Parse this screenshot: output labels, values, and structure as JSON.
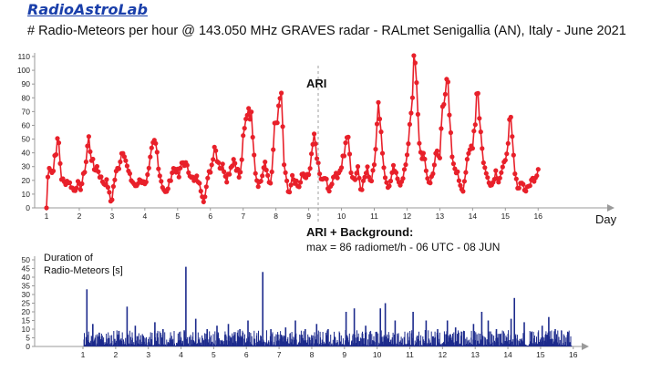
{
  "header": {
    "logo_text": "RadioAstroLab",
    "title": "# Radio-Meteors per hour  @ 143.050 MHz GRAVES radar - RALmet Senigallia (AN), Italy - June 2021"
  },
  "annotations": {
    "peak_label": "ARI",
    "info_heading": "ARI + Background:",
    "info_detail": "max = 86 radiomet/h - 06 UTC - 08 JUN",
    "lower_label_line1": "Duration of",
    "lower_label_line2": "Radio-Meteors [s]",
    "xaxis_label": "Day"
  },
  "colors": {
    "rate_series": "#e8202a",
    "duration_series": "#1c2a8c",
    "axis": "#9a9a9a"
  },
  "chart_data": [
    {
      "type": "line",
      "title": "# Radio-Meteors per hour  @ 143.050 MHz GRAVES radar - RALmet Senigallia (AN), Italy - June 2021",
      "xlabel": "Day",
      "ylabel": "",
      "xlim": [
        1,
        16
      ],
      "ylim": [
        0,
        110
      ],
      "x_ticks": [
        1,
        2,
        3,
        4,
        5,
        6,
        7,
        8,
        9,
        10,
        11,
        12,
        13,
        14,
        15,
        16
      ],
      "y_ticks": [
        0,
        10,
        20,
        30,
        40,
        50,
        60,
        70,
        80,
        90,
        100,
        110
      ],
      "grid": false,
      "legend": "none",
      "marker": "dot",
      "control_points": [
        [
          1.0,
          0
        ],
        [
          1.05,
          27
        ],
        [
          1.12,
          30
        ],
        [
          1.2,
          25
        ],
        [
          1.25,
          38
        ],
        [
          1.32,
          46
        ],
        [
          1.37,
          48
        ],
        [
          1.45,
          22
        ],
        [
          1.55,
          18
        ],
        [
          1.65,
          20
        ],
        [
          1.75,
          16
        ],
        [
          1.85,
          12
        ],
        [
          1.95,
          18
        ],
        [
          2.05,
          14
        ],
        [
          2.12,
          22
        ],
        [
          2.2,
          32
        ],
        [
          2.28,
          52
        ],
        [
          2.35,
          40
        ],
        [
          2.45,
          28
        ],
        [
          2.55,
          30
        ],
        [
          2.65,
          22
        ],
        [
          2.75,
          18
        ],
        [
          2.85,
          19
        ],
        [
          2.92,
          10
        ],
        [
          2.98,
          2
        ],
        [
          3.05,
          17
        ],
        [
          3.12,
          25
        ],
        [
          3.2,
          30
        ],
        [
          3.28,
          39
        ],
        [
          3.35,
          45
        ],
        [
          3.45,
          30
        ],
        [
          3.55,
          22
        ],
        [
          3.65,
          18
        ],
        [
          3.75,
          15
        ],
        [
          3.85,
          22
        ],
        [
          3.95,
          18
        ],
        [
          4.05,
          20
        ],
        [
          4.12,
          26
        ],
        [
          4.2,
          39
        ],
        [
          4.28,
          47
        ],
        [
          4.35,
          45
        ],
        [
          4.45,
          25
        ],
        [
          4.55,
          15
        ],
        [
          4.65,
          10
        ],
        [
          4.75,
          18
        ],
        [
          4.85,
          28
        ],
        [
          4.95,
          29
        ],
        [
          5.05,
          22
        ],
        [
          5.12,
          32
        ],
        [
          5.2,
          34
        ],
        [
          5.3,
          28
        ],
        [
          5.4,
          25
        ],
        [
          5.5,
          19
        ],
        [
          5.6,
          22
        ],
        [
          5.7,
          14
        ],
        [
          5.8,
          4
        ],
        [
          5.88,
          16
        ],
        [
          5.95,
          24
        ],
        [
          6.05,
          32
        ],
        [
          6.12,
          47
        ],
        [
          6.2,
          38
        ],
        [
          6.3,
          30
        ],
        [
          6.4,
          30
        ],
        [
          6.5,
          21
        ],
        [
          6.6,
          28
        ],
        [
          6.7,
          36
        ],
        [
          6.8,
          30
        ],
        [
          6.9,
          20
        ],
        [
          7.0,
          48
        ],
        [
          7.08,
          62
        ],
        [
          7.15,
          76
        ],
        [
          7.22,
          70
        ],
        [
          7.3,
          55
        ],
        [
          7.38,
          25
        ],
        [
          7.45,
          17
        ],
        [
          7.55,
          20
        ],
        [
          7.65,
          32
        ],
        [
          7.75,
          24
        ],
        [
          7.85,
          15
        ],
        [
          7.95,
          56
        ],
        [
          8.05,
          63
        ],
        [
          8.12,
          72
        ],
        [
          8.17,
          86
        ],
        [
          8.25,
          30
        ],
        [
          8.32,
          20
        ],
        [
          8.4,
          8
        ],
        [
          8.5,
          22
        ],
        [
          8.6,
          19
        ],
        [
          8.7,
          14
        ],
        [
          8.8,
          24
        ],
        [
          8.9,
          22
        ],
        [
          9.0,
          23
        ],
        [
          9.08,
          40
        ],
        [
          9.15,
          50
        ],
        [
          9.22,
          44
        ],
        [
          9.3,
          30
        ],
        [
          9.4,
          20
        ],
        [
          9.5,
          24
        ],
        [
          9.6,
          12
        ],
        [
          9.7,
          18
        ],
        [
          9.8,
          25
        ],
        [
          9.9,
          22
        ],
        [
          10.0,
          30
        ],
        [
          10.08,
          40
        ],
        [
          10.15,
          54
        ],
        [
          10.22,
          46
        ],
        [
          10.3,
          26
        ],
        [
          10.4,
          20
        ],
        [
          10.5,
          30
        ],
        [
          10.6,
          12
        ],
        [
          10.7,
          22
        ],
        [
          10.8,
          28
        ],
        [
          10.9,
          18
        ],
        [
          11.0,
          35
        ],
        [
          11.08,
          57
        ],
        [
          11.15,
          79
        ],
        [
          11.22,
          50
        ],
        [
          11.3,
          28
        ],
        [
          11.4,
          14
        ],
        [
          11.5,
          19
        ],
        [
          11.6,
          30
        ],
        [
          11.7,
          20
        ],
        [
          11.8,
          18
        ],
        [
          11.9,
          25
        ],
        [
          12.0,
          35
        ],
        [
          12.08,
          62
        ],
        [
          12.14,
          75
        ],
        [
          12.2,
          101
        ],
        [
          12.26,
          103
        ],
        [
          12.32,
          70
        ],
        [
          12.4,
          40
        ],
        [
          12.5,
          38
        ],
        [
          12.6,
          24
        ],
        [
          12.7,
          17
        ],
        [
          12.8,
          28
        ],
        [
          12.9,
          40
        ],
        [
          13.0,
          36
        ],
        [
          13.08,
          75
        ],
        [
          13.15,
          87
        ],
        [
          13.22,
          98
        ],
        [
          13.3,
          60
        ],
        [
          13.4,
          30
        ],
        [
          13.5,
          28
        ],
        [
          13.6,
          19
        ],
        [
          13.7,
          12
        ],
        [
          13.8,
          28
        ],
        [
          13.9,
          40
        ],
        [
          14.0,
          48
        ],
        [
          14.08,
          64
        ],
        [
          14.15,
          94
        ],
        [
          14.22,
          64
        ],
        [
          14.3,
          40
        ],
        [
          14.4,
          25
        ],
        [
          14.5,
          20
        ],
        [
          14.6,
          16
        ],
        [
          14.7,
          27
        ],
        [
          14.8,
          20
        ],
        [
          14.9,
          28
        ],
        [
          15.0,
          32
        ],
        [
          15.08,
          52
        ],
        [
          15.15,
          64
        ],
        [
          15.22,
          45
        ],
        [
          15.3,
          22
        ],
        [
          15.4,
          14
        ],
        [
          15.5,
          20
        ],
        [
          15.6,
          12
        ],
        [
          15.7,
          15
        ],
        [
          15.8,
          20
        ],
        [
          15.9,
          22
        ],
        [
          16.0,
          28
        ]
      ]
    },
    {
      "type": "bar",
      "title": "",
      "xlabel": "",
      "ylabel": "",
      "xlim": [
        1,
        16
      ],
      "ylim": [
        0,
        50
      ],
      "y_ticks": [
        0,
        5,
        10,
        15,
        20,
        25,
        30,
        35,
        40,
        45,
        50
      ],
      "x_ticks": [
        1,
        2,
        3,
        4,
        5,
        6,
        7,
        8,
        9,
        10,
        11,
        12,
        13,
        14,
        15,
        16
      ],
      "grid": false,
      "legend": "none",
      "spikes": [
        [
          1.12,
          33
        ],
        [
          1.3,
          13
        ],
        [
          1.5,
          8
        ],
        [
          2.1,
          9
        ],
        [
          2.35,
          23
        ],
        [
          2.6,
          12
        ],
        [
          3.2,
          14
        ],
        [
          3.45,
          10
        ],
        [
          4.15,
          46
        ],
        [
          4.45,
          16
        ],
        [
          4.8,
          10
        ],
        [
          5.1,
          12
        ],
        [
          5.45,
          13
        ],
        [
          5.8,
          10
        ],
        [
          6.05,
          15
        ],
        [
          6.5,
          43
        ],
        [
          6.75,
          10
        ],
        [
          7.2,
          11
        ],
        [
          7.5,
          15
        ],
        [
          7.8,
          10
        ],
        [
          8.15,
          13
        ],
        [
          8.5,
          10
        ],
        [
          9.05,
          20
        ],
        [
          9.3,
          22
        ],
        [
          9.65,
          12
        ],
        [
          10.1,
          22
        ],
        [
          10.25,
          25
        ],
        [
          10.55,
          15
        ],
        [
          11.1,
          20
        ],
        [
          11.5,
          15
        ],
        [
          11.85,
          10
        ],
        [
          12.15,
          15
        ],
        [
          12.4,
          11
        ],
        [
          12.95,
          13
        ],
        [
          13.2,
          20
        ],
        [
          13.4,
          15
        ],
        [
          13.65,
          10
        ],
        [
          14.1,
          16
        ],
        [
          14.2,
          28
        ],
        [
          14.5,
          14
        ],
        [
          15.05,
          12
        ],
        [
          15.25,
          17
        ],
        [
          15.45,
          10
        ]
      ]
    }
  ]
}
